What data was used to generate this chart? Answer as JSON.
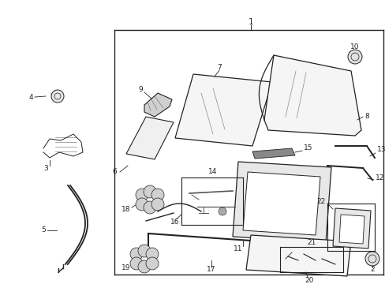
{
  "bg_color": "#ffffff",
  "line_color": "#222222",
  "fig_width": 4.89,
  "fig_height": 3.6,
  "dpi": 100
}
